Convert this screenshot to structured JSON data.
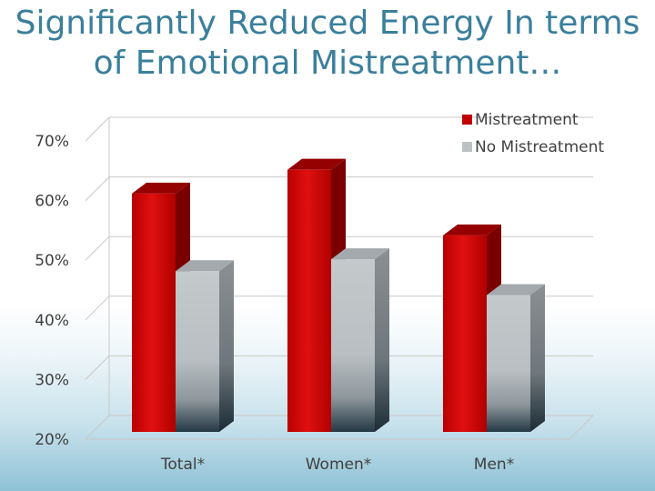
{
  "title": "Significantly Reduced Energy In terms of Emotional Mistreatment…",
  "chart_data": {
    "type": "bar",
    "title": "Significantly Reduced Energy In terms of Emotional Mistreatment…",
    "categories": [
      "Total*",
      "Women*",
      "Men*"
    ],
    "series": [
      {
        "name": "Mistreatment",
        "values": [
          63,
          67,
          56
        ],
        "color": "#c00000"
      },
      {
        "name": "No Mistreatment",
        "values": [
          50,
          52,
          46
        ],
        "color": "#bcc2c4"
      }
    ],
    "ylim": [
      20,
      70
    ],
    "yticks": [
      "20%",
      "30%",
      "40%",
      "50%",
      "60%",
      "70%"
    ],
    "ytick_values": [
      20,
      30,
      40,
      50,
      60,
      70
    ],
    "xlabel": "",
    "ylabel": "",
    "grid": true,
    "legend": "top-right"
  }
}
